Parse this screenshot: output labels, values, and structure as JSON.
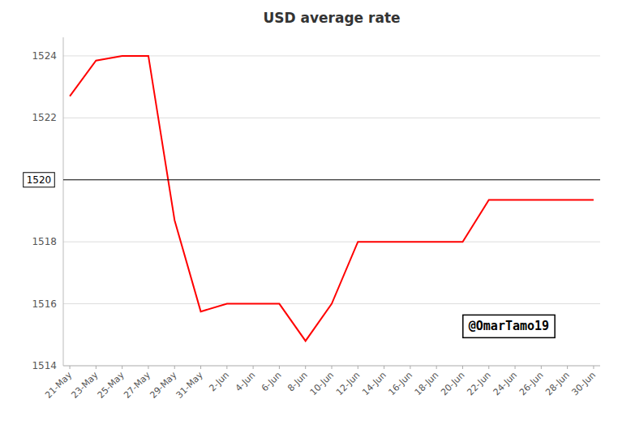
{
  "chart_data": {
    "type": "line",
    "title": "USD average rate",
    "categories": [
      "21-May",
      "23-May",
      "25-May",
      "27-May",
      "29-May",
      "31-May",
      "2-Jun",
      "4-Jun",
      "6-Jun",
      "8-Jun",
      "10-Jun",
      "12-Jun",
      "14-Jun",
      "16-Jun",
      "18-Jun",
      "20-Jun",
      "22-Jun",
      "24-Jun",
      "26-Jun",
      "28-Jun",
      "30-Jun"
    ],
    "values": [
      1522.7,
      1523.85,
      1524.0,
      1524.0,
      1518.7,
      1515.75,
      1516.0,
      1516.0,
      1516.0,
      1514.8,
      1516.0,
      1518.0,
      1518.0,
      1518.0,
      1518.0,
      1518.0,
      1519.35,
      1519.35,
      1519.35,
      1519.35,
      1519.35
    ],
    "color": "#ff0000",
    "ylim": [
      1514,
      1524.6
    ],
    "yticks": [
      1514,
      1516,
      1518,
      1522,
      1524
    ],
    "grid": true,
    "reference_line": {
      "value": 1520,
      "color": "#000000"
    },
    "annotations": [
      {
        "text": "@OmarTamo19"
      }
    ]
  }
}
